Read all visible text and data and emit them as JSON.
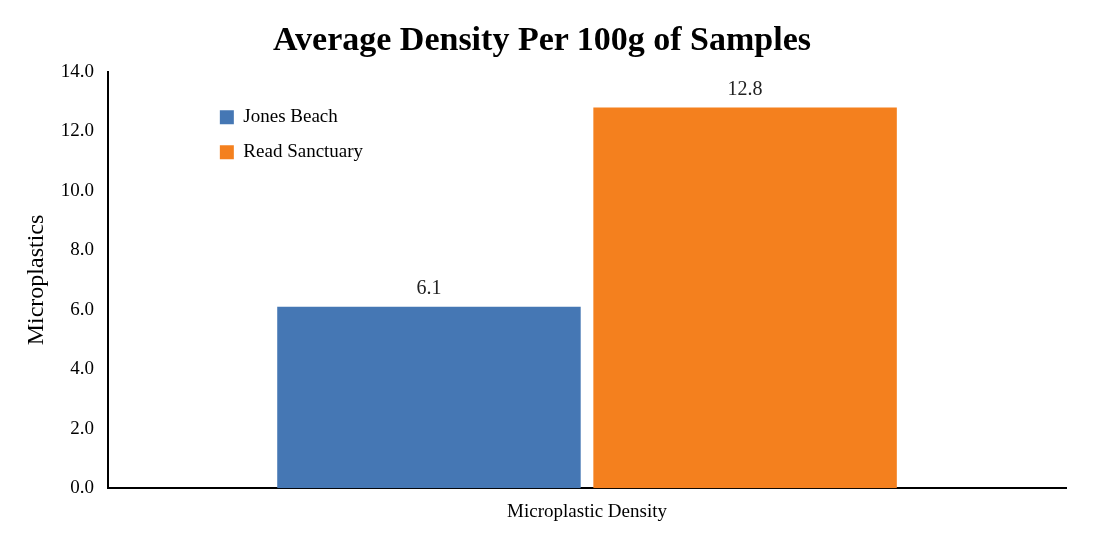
{
  "chart_data": {
    "type": "bar",
    "title": "Average Density Per 100g of Samples",
    "ylabel": "Microplastics",
    "categories": [
      "Microplastic Density"
    ],
    "series": [
      {
        "name": "Jones Beach",
        "color": "#4577b4",
        "values": [
          6.1
        ]
      },
      {
        "name": "Read Sanctuary",
        "color": "#f4801e",
        "values": [
          12.8
        ]
      }
    ],
    "ylim": [
      0,
      14
    ],
    "yticks": [
      {
        "value": 0,
        "label": "0.0"
      },
      {
        "value": 2,
        "label": "2.0"
      },
      {
        "value": 4,
        "label": "4.0"
      },
      {
        "value": 6,
        "label": "6.0"
      },
      {
        "value": 8,
        "label": "8.0"
      },
      {
        "value": 10,
        "label": "10.0"
      },
      {
        "value": 12,
        "label": "12.0"
      },
      {
        "value": 14,
        "label": "14.0"
      }
    ],
    "grid": false,
    "legend": "top left",
    "data_labels": true
  }
}
